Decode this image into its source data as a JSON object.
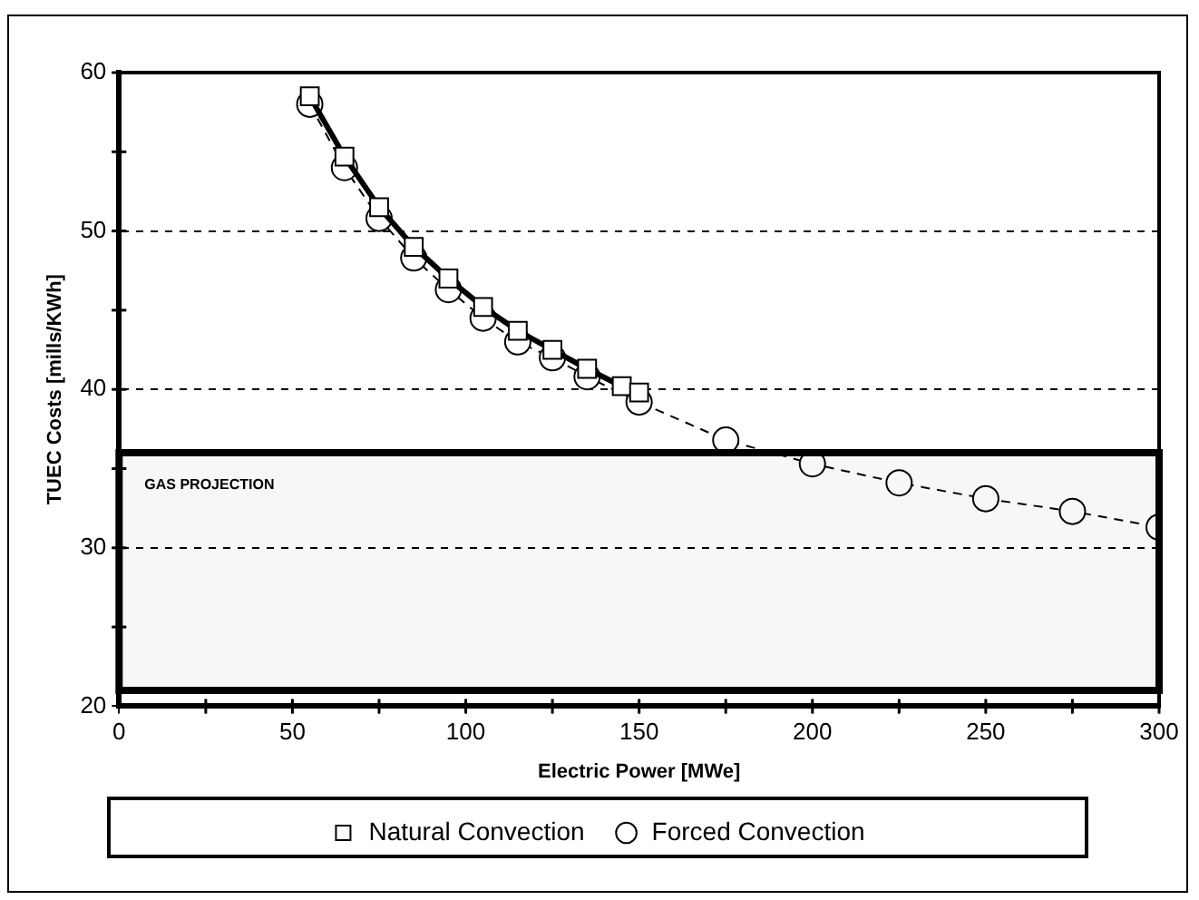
{
  "chart_data": {
    "type": "line",
    "xlabel": "Electric Power [MWe]",
    "ylabel": "TUEC Costs [mills/KWh]",
    "xlim": [
      0,
      300
    ],
    "ylim": [
      20,
      60
    ],
    "xticks": [
      0,
      {
        "value": 25,
        "label": null
      },
      50,
      {
        "value": 75,
        "label": null
      },
      100,
      {
        "value": 125,
        "label": null
      },
      150,
      {
        "value": 175,
        "label": null
      },
      200,
      {
        "value": 225,
        "label": null
      },
      250,
      {
        "value": 275,
        "label": null
      },
      300
    ],
    "yticks": [
      20,
      {
        "value": 25,
        "label": null
      },
      30,
      {
        "value": 35,
        "label": null
      },
      40,
      {
        "value": 45,
        "label": null
      },
      50,
      {
        "value": 55,
        "label": null
      },
      60
    ],
    "grid": "y",
    "legend": "bottom",
    "series": [
      {
        "name": "Natural Convection",
        "color": "#000000",
        "marker": "square",
        "line_style": "solid",
        "x": [
          55,
          65,
          75,
          85,
          95,
          105,
          115,
          125,
          135,
          145,
          150
        ],
        "values": [
          58.5,
          54.7,
          51.5,
          49,
          47,
          45.2,
          43.7,
          42.5,
          41.3,
          40.2,
          39.8
        ]
      },
      {
        "name": "Forced Convection",
        "color": "#000000",
        "marker": "circle",
        "line_style": "dashed",
        "x": [
          55,
          65,
          75,
          85,
          95,
          105,
          115,
          125,
          135,
          150,
          175,
          200,
          225,
          250,
          275,
          300
        ],
        "values": [
          58,
          54,
          50.8,
          48.3,
          46.3,
          44.5,
          43,
          42,
          40.8,
          39.2,
          36.8,
          35.3,
          34.1,
          33.1,
          32.3,
          31.3
        ]
      }
    ],
    "bands": [
      {
        "axis": "y",
        "from": 21,
        "to": 36,
        "label": "GAS PROJECTION",
        "color": "#000000"
      }
    ]
  }
}
